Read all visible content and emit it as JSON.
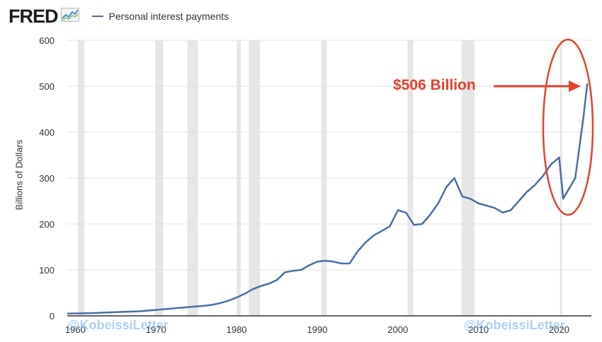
{
  "header": {
    "logo_text": "FRED",
    "logo_icon": "line-chart-icon",
    "legend_label": "Personal interest payments",
    "legend_color": "#4a6fa5"
  },
  "annotation": {
    "text": "$506 Billion",
    "color": "#e5412d"
  },
  "watermark": {
    "left_text": "@KobeissiLetter",
    "right_text": "@KobeissiLetter"
  },
  "chart_data": {
    "type": "line",
    "title": "",
    "xlabel": "",
    "ylabel": "Billions of Dollars",
    "xlim": [
      1959,
      2024
    ],
    "ylim": [
      0,
      600
    ],
    "x_ticks": [
      1960,
      1970,
      1980,
      1990,
      2000,
      2010,
      2020
    ],
    "y_ticks": [
      0,
      100,
      200,
      300,
      400,
      500,
      600
    ],
    "grid": "horizontal",
    "recessions": [
      [
        1960.3,
        1961.1
      ],
      [
        1969.9,
        1970.9
      ],
      [
        1973.9,
        1975.2
      ],
      [
        1980.0,
        1980.5
      ],
      [
        1981.5,
        1982.9
      ],
      [
        1990.5,
        1991.2
      ],
      [
        2001.2,
        2001.9
      ],
      [
        2007.9,
        2009.5
      ],
      [
        2020.1,
        2020.3
      ]
    ],
    "series": [
      {
        "name": "Personal interest payments",
        "color": "#4a6fa5",
        "x": [
          1959,
          1962,
          1965,
          1968,
          1970,
          1972,
          1974,
          1976,
          1977,
          1978,
          1979,
          1980,
          1981,
          1982,
          1983,
          1984,
          1985,
          1986,
          1987,
          1988,
          1989,
          1990,
          1991,
          1992,
          1993,
          1994,
          1995,
          1996,
          1997,
          1998,
          1999,
          2000,
          2001,
          2002,
          2003,
          2004,
          2005,
          2006,
          2007,
          2008,
          2009,
          2010,
          2011,
          2012,
          2013,
          2014,
          2015,
          2016,
          2017,
          2018,
          2019,
          2020,
          2020.5,
          2021,
          2022,
          2023,
          2023.5
        ],
        "values": [
          5,
          6,
          8,
          10,
          13,
          16,
          19,
          22,
          24,
          28,
          33,
          40,
          48,
          58,
          65,
          70,
          78,
          95,
          98,
          100,
          110,
          118,
          120,
          118,
          114,
          114,
          140,
          160,
          175,
          185,
          195,
          230,
          225,
          198,
          200,
          220,
          245,
          280,
          300,
          260,
          255,
          245,
          240,
          235,
          225,
          230,
          250,
          270,
          285,
          305,
          330,
          345,
          255,
          270,
          300,
          430,
          506
        ]
      }
    ]
  }
}
